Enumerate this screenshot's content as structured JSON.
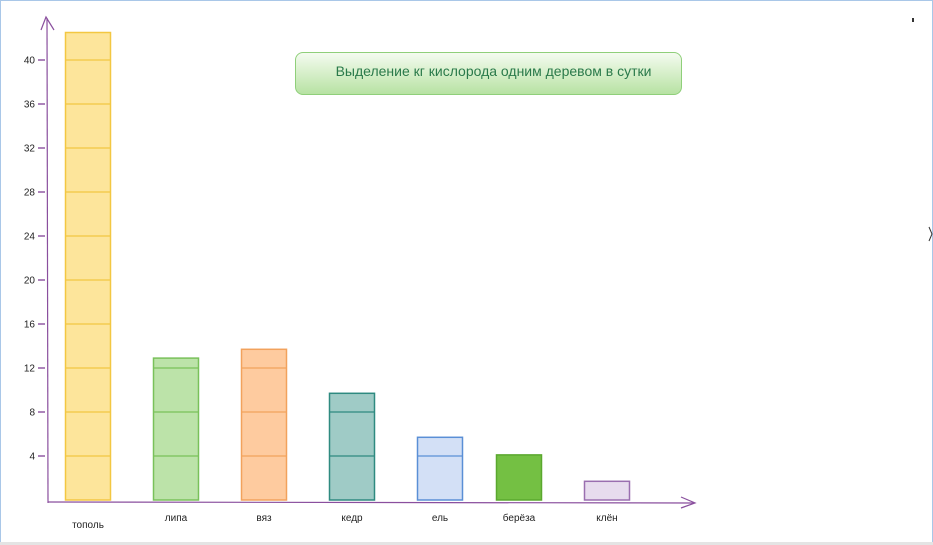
{
  "chart_data": {
    "type": "bar",
    "title": "Выделение кг кислорода одним деревом в сутки",
    "categories": [
      "тополь",
      "липа",
      "вяз",
      "кедр",
      "ель",
      "берёза",
      "клён"
    ],
    "values": [
      42.5,
      12.9,
      13.7,
      9.7,
      5.7,
      4.1,
      1.7
    ],
    "yticks": [
      4,
      8,
      12,
      16,
      20,
      24,
      28,
      32,
      36,
      40
    ],
    "ylim": [
      0,
      44
    ],
    "xlabel": "",
    "ylabel": "",
    "grid": false,
    "bar_styles": [
      {
        "fill": "#fde59b",
        "stroke": "#f3c742"
      },
      {
        "fill": "#bce3a9",
        "stroke": "#79c15a"
      },
      {
        "fill": "#fecb9f",
        "stroke": "#f2a25c"
      },
      {
        "fill": "#9fcbc6",
        "stroke": "#2e8a80"
      },
      {
        "fill": "#d3e0f6",
        "stroke": "#5a8fd6"
      },
      {
        "fill": "#74c043",
        "stroke": "#5aa82e"
      },
      {
        "fill": "#e7dcee",
        "stroke": "#9a6fb0"
      }
    ],
    "axis_color": "#8a4f9e"
  }
}
